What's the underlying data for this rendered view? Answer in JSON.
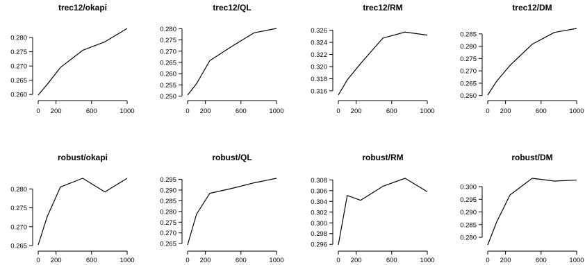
{
  "chart_data": [
    {
      "type": "line",
      "title": "trec12/okapi",
      "x": [
        0,
        100,
        250,
        500,
        750,
        1000
      ],
      "y": [
        0.2598,
        0.2635,
        0.2695,
        0.2755,
        0.2785,
        0.2832
      ],
      "xticks": [
        0,
        200,
        600,
        1000
      ],
      "xtick_labels": [
        "0",
        "200",
        "600",
        "1000"
      ],
      "yticks": [
        0.26,
        0.265,
        0.27,
        0.275,
        0.28
      ],
      "ytick_labels": [
        "0.260",
        "0.265",
        "0.270",
        "0.275",
        "0.280"
      ],
      "xlim": [
        0,
        1000
      ],
      "ylim": [
        0.2598,
        0.2832
      ]
    },
    {
      "type": "line",
      "title": "trec12/QL",
      "x": [
        0,
        100,
        250,
        500,
        750,
        1000
      ],
      "y": [
        0.2505,
        0.2555,
        0.2658,
        0.2722,
        0.2782,
        0.2801
      ],
      "xticks": [
        0,
        200,
        600,
        1000
      ],
      "xtick_labels": [
        "0",
        "200",
        "600",
        "1000"
      ],
      "yticks": [
        0.25,
        0.255,
        0.26,
        0.265,
        0.27,
        0.275,
        0.28
      ],
      "ytick_labels": [
        "0.250",
        "0.255",
        "0.260",
        "0.265",
        "0.270",
        "0.275",
        "0.280"
      ],
      "xlim": [
        0,
        1000
      ],
      "ylim": [
        0.2505,
        0.2801
      ]
    },
    {
      "type": "line",
      "title": "trec12/RM",
      "x": [
        0,
        100,
        250,
        500,
        750,
        1000
      ],
      "y": [
        0.3153,
        0.3178,
        0.3205,
        0.3247,
        0.3257,
        0.3252
      ],
      "xticks": [
        0,
        200,
        600,
        1000
      ],
      "xtick_labels": [
        "0",
        "200",
        "600",
        "1000"
      ],
      "yticks": [
        0.316,
        0.318,
        0.32,
        0.322,
        0.324,
        0.326
      ],
      "ytick_labels": [
        "0.316",
        "0.318",
        "0.320",
        "0.322",
        "0.324",
        "0.326"
      ],
      "xlim": [
        0,
        1000
      ],
      "ylim": [
        0.3153,
        0.3263
      ]
    },
    {
      "type": "line",
      "title": "trec12/DM",
      "x": [
        0,
        100,
        250,
        500,
        750,
        1000
      ],
      "y": [
        0.2602,
        0.2658,
        0.2722,
        0.2808,
        0.2856,
        0.2872
      ],
      "xticks": [
        0,
        200,
        600,
        1000
      ],
      "xtick_labels": [
        "0",
        "200",
        "600",
        "1000"
      ],
      "yticks": [
        0.26,
        0.265,
        0.27,
        0.275,
        0.28,
        0.285
      ],
      "ytick_labels": [
        "0.260",
        "0.265",
        "0.270",
        "0.275",
        "0.280",
        "0.285"
      ],
      "xlim": [
        0,
        1000
      ],
      "ylim": [
        0.2602,
        0.2872
      ]
    },
    {
      "type": "line",
      "title": "robust/okapi",
      "x": [
        0,
        100,
        250,
        500,
        750,
        1000
      ],
      "y": [
        0.2652,
        0.2726,
        0.2805,
        0.2828,
        0.2792,
        0.2828
      ],
      "xticks": [
        0,
        200,
        600,
        1000
      ],
      "xtick_labels": [
        "0",
        "200",
        "600",
        "1000"
      ],
      "yticks": [
        0.265,
        0.27,
        0.275,
        0.28
      ],
      "ytick_labels": [
        "0.265",
        "0.270",
        "0.275",
        "0.280"
      ],
      "xlim": [
        0,
        1000
      ],
      "ylim": [
        0.2652,
        0.2828
      ]
    },
    {
      "type": "line",
      "title": "robust/QL",
      "x": [
        0,
        100,
        250,
        500,
        750,
        1000
      ],
      "y": [
        0.2644,
        0.2787,
        0.2885,
        0.2908,
        0.2934,
        0.2955
      ],
      "xticks": [
        0,
        200,
        600,
        1000
      ],
      "xtick_labels": [
        "0",
        "200",
        "600",
        "1000"
      ],
      "yticks": [
        0.265,
        0.27,
        0.275,
        0.28,
        0.285,
        0.29,
        0.295
      ],
      "ytick_labels": [
        "0.265",
        "0.270",
        "0.275",
        "0.280",
        "0.285",
        "0.290",
        "0.295"
      ],
      "xlim": [
        0,
        1000
      ],
      "ylim": [
        0.2644,
        0.2955
      ]
    },
    {
      "type": "line",
      "title": "robust/RM",
      "x": [
        0,
        100,
        250,
        500,
        750,
        1000
      ],
      "y": [
        0.2959,
        0.3051,
        0.3042,
        0.3068,
        0.3083,
        0.3058
      ],
      "xticks": [
        0,
        200,
        600,
        1000
      ],
      "xtick_labels": [
        "0",
        "200",
        "600",
        "1000"
      ],
      "yticks": [
        0.296,
        0.298,
        0.3,
        0.302,
        0.304,
        0.306,
        0.308
      ],
      "ytick_labels": [
        "0.296",
        "0.298",
        "0.300",
        "0.302",
        "0.304",
        "0.306",
        "0.308"
      ],
      "xlim": [
        0,
        1000
      ],
      "ylim": [
        0.2959,
        0.3083
      ]
    },
    {
      "type": "line",
      "title": "robust/DM",
      "x": [
        0,
        100,
        250,
        500,
        750,
        1000
      ],
      "y": [
        0.277,
        0.286,
        0.2967,
        0.3033,
        0.3022,
        0.3026
      ],
      "xticks": [
        0,
        200,
        600,
        1000
      ],
      "xtick_labels": [
        "0",
        "200",
        "600",
        "1000"
      ],
      "yticks": [
        0.28,
        0.285,
        0.29,
        0.295,
        0.3
      ],
      "ytick_labels": [
        "0.280",
        "0.285",
        "0.290",
        "0.295",
        "0.300"
      ],
      "xlim": [
        0,
        1000
      ],
      "ylim": [
        0.277,
        0.3033
      ]
    }
  ]
}
